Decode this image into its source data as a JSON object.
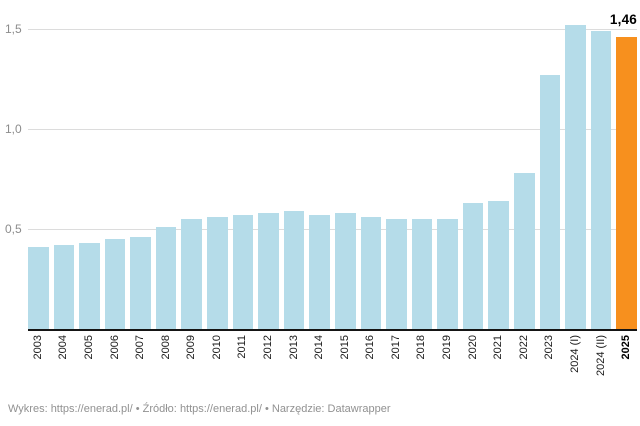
{
  "chart_data": {
    "type": "bar",
    "categories": [
      "2003",
      "2004",
      "2005",
      "2006",
      "2007",
      "2008",
      "2009",
      "2010",
      "2011",
      "2012",
      "2013",
      "2014",
      "2015",
      "2016",
      "2017",
      "2018",
      "2019",
      "2020",
      "2021",
      "2022",
      "2023",
      "2024 (I)",
      "2024 (II)",
      "2025"
    ],
    "values": [
      0.41,
      0.42,
      0.43,
      0.45,
      0.46,
      0.51,
      0.55,
      0.56,
      0.57,
      0.58,
      0.59,
      0.57,
      0.58,
      0.56,
      0.55,
      0.55,
      0.55,
      0.63,
      0.64,
      0.78,
      1.27,
      1.52,
      1.49,
      1.46
    ],
    "highlight_index": 23,
    "highlight_label": "1,46",
    "y_ticks": [
      {
        "label": "1,5",
        "value": 1.5
      },
      {
        "label": "1,0",
        "value": 1.0
      },
      {
        "label": "0,5",
        "value": 0.5
      }
    ],
    "ylim": [
      0,
      1.65
    ],
    "grid": true,
    "legend_position": "none",
    "bar_color": "#b5dce9",
    "highlight_color": "#f7901e",
    "gridline_color": "#dcdcdc",
    "axis_color": "#151515",
    "title": "",
    "xlabel": "",
    "ylabel": ""
  },
  "footer": {
    "chart_label": "Wykres:",
    "chart_link": "https://enerad.pl/",
    "separator": "•",
    "source_label": "Źródło:",
    "source_link": "https://enerad.pl/",
    "tool_label": "Narzędzie:",
    "tool_link": "Datawrapper"
  }
}
